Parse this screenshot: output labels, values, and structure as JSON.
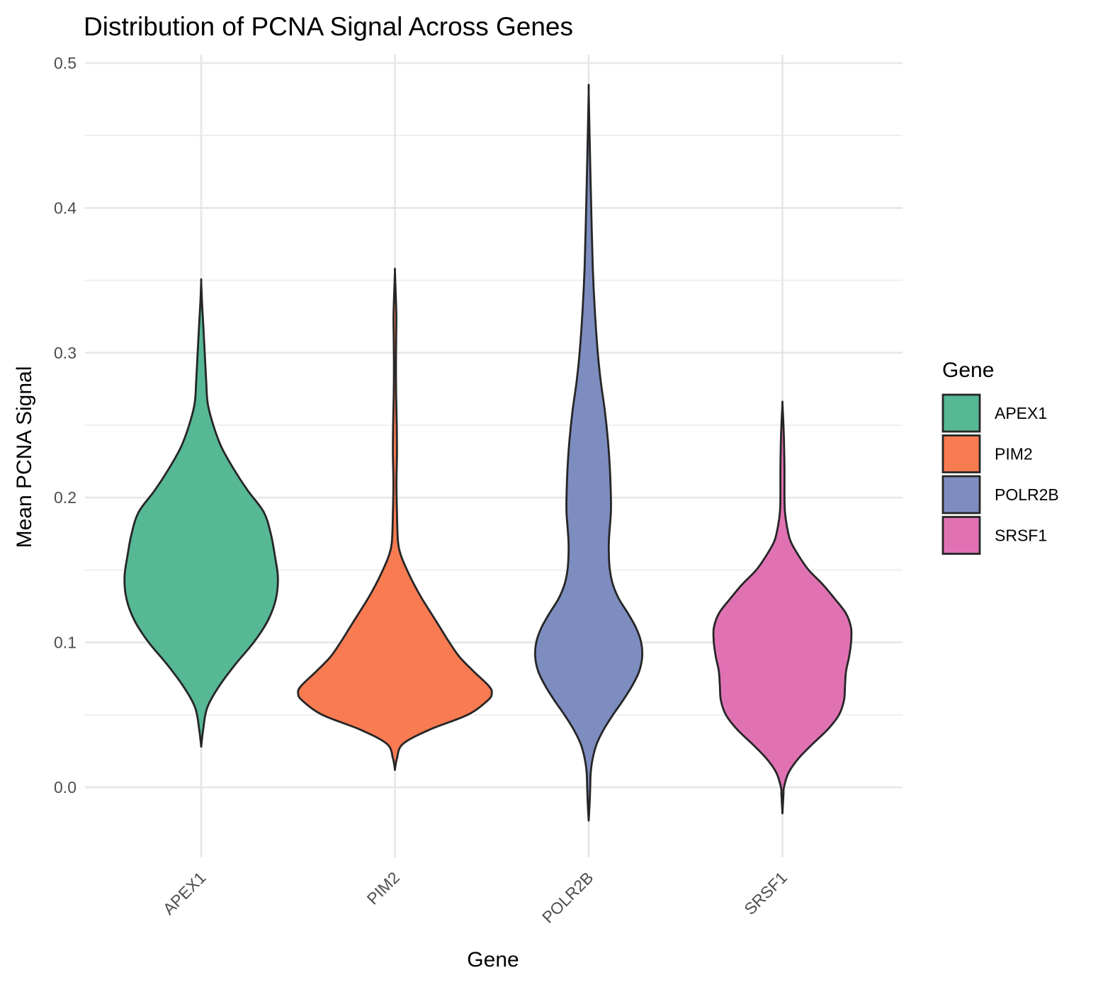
{
  "chart_data": {
    "type": "violin",
    "title": "Distribution of PCNA Signal Across Genes",
    "xlabel": "Gene",
    "ylabel": "Mean PCNA Signal",
    "ylim": [
      -0.05,
      0.5
    ],
    "yticks": [
      "0.0",
      "0.1",
      "0.2",
      "0.3",
      "0.4",
      "0.5"
    ],
    "grid": true,
    "legend": {
      "title": "Gene",
      "position": "right"
    },
    "categories": [
      "APEX1",
      "PIM2",
      "POLR2B",
      "SRSF1"
    ],
    "series": [
      {
        "name": "APEX1",
        "color": "#56B894",
        "range": [
          0.028,
          0.349
        ],
        "density": [
          [
            0.028,
            0.0
          ],
          [
            0.04,
            0.02
          ],
          [
            0.055,
            0.06
          ],
          [
            0.07,
            0.18
          ],
          [
            0.085,
            0.34
          ],
          [
            0.1,
            0.52
          ],
          [
            0.115,
            0.66
          ],
          [
            0.13,
            0.74
          ],
          [
            0.145,
            0.76
          ],
          [
            0.16,
            0.73
          ],
          [
            0.175,
            0.69
          ],
          [
            0.19,
            0.62
          ],
          [
            0.205,
            0.46
          ],
          [
            0.22,
            0.32
          ],
          [
            0.235,
            0.2
          ],
          [
            0.25,
            0.12
          ],
          [
            0.265,
            0.065
          ],
          [
            0.28,
            0.05
          ],
          [
            0.3,
            0.035
          ],
          [
            0.32,
            0.02
          ],
          [
            0.335,
            0.008
          ],
          [
            0.349,
            0.0
          ]
        ]
      },
      {
        "name": "PIM2",
        "color": "#F87B52",
        "range": [
          0.012,
          0.356
        ],
        "density": [
          [
            0.012,
            0.0
          ],
          [
            0.02,
            0.02
          ],
          [
            0.03,
            0.08
          ],
          [
            0.04,
            0.35
          ],
          [
            0.05,
            0.72
          ],
          [
            0.06,
            0.92
          ],
          [
            0.065,
            0.96
          ],
          [
            0.07,
            0.93
          ],
          [
            0.08,
            0.78
          ],
          [
            0.09,
            0.64
          ],
          [
            0.1,
            0.54
          ],
          [
            0.11,
            0.45
          ],
          [
            0.12,
            0.36
          ],
          [
            0.13,
            0.27
          ],
          [
            0.14,
            0.19
          ],
          [
            0.15,
            0.12
          ],
          [
            0.16,
            0.06
          ],
          [
            0.17,
            0.03
          ],
          [
            0.19,
            0.02
          ],
          [
            0.21,
            0.015
          ],
          [
            0.23,
            0.02
          ],
          [
            0.25,
            0.018
          ],
          [
            0.27,
            0.012
          ],
          [
            0.29,
            0.01
          ],
          [
            0.31,
            0.012
          ],
          [
            0.325,
            0.014
          ],
          [
            0.34,
            0.008
          ],
          [
            0.356,
            0.0
          ]
        ]
      },
      {
        "name": "POLR2B",
        "color": "#7D8DC0",
        "range": [
          -0.023,
          0.48
        ],
        "density": [
          [
            -0.023,
            0.0
          ],
          [
            -0.01,
            0.01
          ],
          [
            0.0,
            0.015
          ],
          [
            0.01,
            0.02
          ],
          [
            0.02,
            0.04
          ],
          [
            0.03,
            0.08
          ],
          [
            0.04,
            0.15
          ],
          [
            0.05,
            0.24
          ],
          [
            0.06,
            0.34
          ],
          [
            0.07,
            0.43
          ],
          [
            0.08,
            0.5
          ],
          [
            0.09,
            0.53
          ],
          [
            0.1,
            0.52
          ],
          [
            0.11,
            0.47
          ],
          [
            0.12,
            0.39
          ],
          [
            0.13,
            0.3
          ],
          [
            0.14,
            0.24
          ],
          [
            0.15,
            0.21
          ],
          [
            0.16,
            0.2
          ],
          [
            0.17,
            0.2
          ],
          [
            0.18,
            0.21
          ],
          [
            0.19,
            0.22
          ],
          [
            0.2,
            0.22
          ],
          [
            0.22,
            0.21
          ],
          [
            0.24,
            0.19
          ],
          [
            0.26,
            0.16
          ],
          [
            0.28,
            0.12
          ],
          [
            0.3,
            0.09
          ],
          [
            0.33,
            0.06
          ],
          [
            0.36,
            0.04
          ],
          [
            0.4,
            0.025
          ],
          [
            0.44,
            0.012
          ],
          [
            0.48,
            0.0
          ]
        ]
      },
      {
        "name": "SRSF1",
        "color": "#E072B4",
        "range": [
          -0.018,
          0.265
        ],
        "density": [
          [
            -0.018,
            0.0
          ],
          [
            -0.005,
            0.01
          ],
          [
            0.0,
            0.015
          ],
          [
            0.01,
            0.06
          ],
          [
            0.02,
            0.16
          ],
          [
            0.03,
            0.3
          ],
          [
            0.04,
            0.45
          ],
          [
            0.05,
            0.56
          ],
          [
            0.06,
            0.61
          ],
          [
            0.07,
            0.62
          ],
          [
            0.08,
            0.63
          ],
          [
            0.09,
            0.66
          ],
          [
            0.1,
            0.68
          ],
          [
            0.11,
            0.68
          ],
          [
            0.12,
            0.63
          ],
          [
            0.13,
            0.52
          ],
          [
            0.14,
            0.4
          ],
          [
            0.15,
            0.26
          ],
          [
            0.16,
            0.16
          ],
          [
            0.17,
            0.08
          ],
          [
            0.18,
            0.045
          ],
          [
            0.19,
            0.025
          ],
          [
            0.2,
            0.02
          ],
          [
            0.22,
            0.02
          ],
          [
            0.24,
            0.015
          ],
          [
            0.255,
            0.007
          ],
          [
            0.265,
            0.0
          ]
        ]
      }
    ]
  }
}
